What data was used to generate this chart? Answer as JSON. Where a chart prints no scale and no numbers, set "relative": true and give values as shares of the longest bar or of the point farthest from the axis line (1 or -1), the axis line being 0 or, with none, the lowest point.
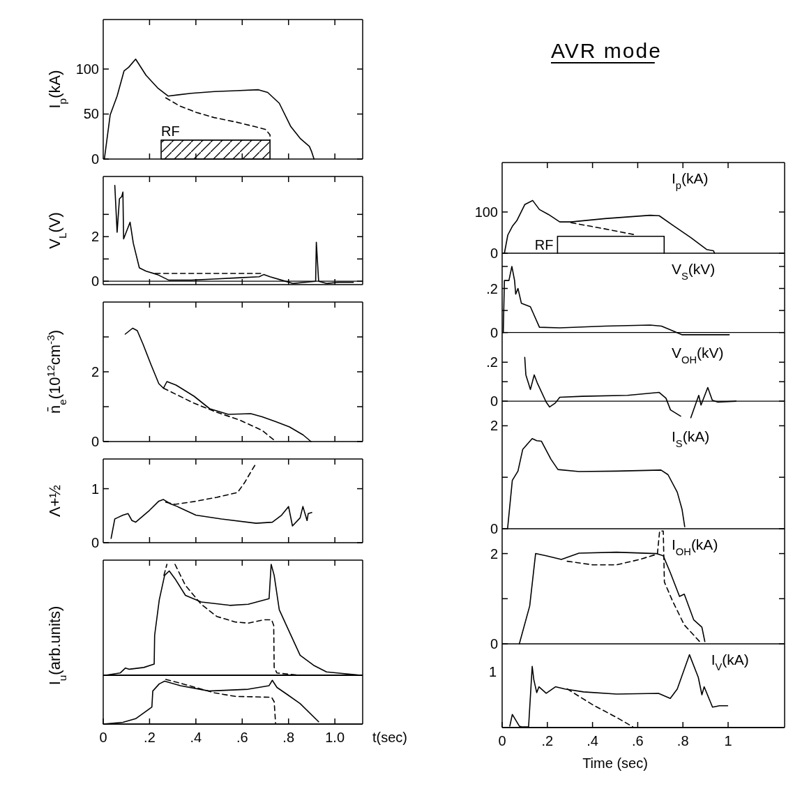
{
  "chart_data": [
    {
      "type": "line",
      "ylabel": "I$_{p}$(kA)",
      "xlim": [
        0,
        1.12
      ],
      "xticks": [
        {
          "value": 0.2,
          "label": null
        },
        {
          "value": 0.4,
          "label": null
        },
        {
          "value": 0.6,
          "label": null
        },
        {
          "value": 0.8,
          "label": null
        },
        {
          "value": 1.0,
          "label": null
        }
      ],
      "ylim": [
        0,
        155
      ],
      "yticks": [
        0,
        50,
        100
      ],
      "tick_labels": "y",
      "series": [
        {
          "color": "#000000",
          "line_style": "solid",
          "x": [
            0.005,
            0.03,
            0.06,
            0.09,
            0.11,
            0.14,
            0.185,
            0.235,
            0.28,
            0.38,
            0.48,
            0.575,
            0.67,
            0.71,
            0.76,
            0.81,
            0.85,
            0.89,
            0.9,
            0.91
          ],
          "values": [
            0,
            49,
            70,
            98,
            102,
            111,
            93,
            79,
            70,
            73,
            75,
            76,
            77,
            74,
            62,
            36,
            23,
            14,
            8,
            0
          ]
        },
        {
          "color": "#000000",
          "line_style": "dashed",
          "x": [
            0.27,
            0.33,
            0.4,
            0.48,
            0.575,
            0.655,
            0.7,
            0.72,
            0.72
          ],
          "values": [
            68,
            59,
            52,
            46,
            41,
            36,
            33,
            27,
            21
          ]
        },
        {
          "type": "area",
          "name": "RF",
          "color": "#000000",
          "x": [
            0.25,
            0.72
          ],
          "values": [
            21,
            21
          ]
        }
      ]
    },
    {
      "type": "line",
      "ylabel": "V$_{L}$(V)",
      "xlim": [
        0,
        1.12
      ],
      "xticks": [
        {
          "value": 0.2,
          "label": null
        },
        {
          "value": 0.4,
          "label": null
        },
        {
          "value": 0.6,
          "label": null
        },
        {
          "value": 0.8,
          "label": null
        },
        {
          "value": 1.0,
          "label": null
        }
      ],
      "ylim": [
        -0.15,
        4.7
      ],
      "yticks": [
        0,
        {
          "value": 1,
          "label": null
        },
        2,
        {
          "value": 3,
          "label": null
        }
      ],
      "tick_labels": "y",
      "ref_lines": [
        {
          "axis": "y",
          "value": 0
        }
      ],
      "series": [
        {
          "color": "#000000",
          "line_style": "solid",
          "x": [
            0.05,
            0.06,
            0.07,
            0.08,
            0.085,
            0.088,
            0.116,
            0.13,
            0.156,
            0.185,
            0.234,
            0.283,
            0.38,
            0.478,
            0.575,
            0.673,
            0.693,
            0.72,
            0.77,
            0.82,
            0.87,
            0.917,
            0.92,
            0.93,
            0.966,
            1.015,
            1.08
          ],
          "values": [
            4.3,
            2.2,
            3.7,
            3.8,
            4.0,
            1.9,
            2.65,
            1.7,
            0.6,
            0.45,
            0.3,
            0.05,
            0.05,
            0.1,
            0.15,
            0.2,
            0.3,
            0.2,
            0.05,
            -0.1,
            -0.05,
            0,
            1.75,
            0,
            -0.1,
            -0.05,
            -0.05
          ]
        },
        {
          "color": "#000000",
          "line_style": "dashed",
          "x": [
            0.225,
            0.69
          ],
          "values": [
            0.35,
            0.35
          ]
        }
      ]
    },
    {
      "type": "line",
      "ylabel": "n̄$_{e}$(10$^{12}$cm$^{-3}$)",
      "xlim": [
        0,
        1.12
      ],
      "xticks": [
        {
          "value": 0.2,
          "label": null
        },
        {
          "value": 0.4,
          "label": null
        },
        {
          "value": 0.6,
          "label": null
        },
        {
          "value": 0.8,
          "label": null
        },
        {
          "value": 1.0,
          "label": null
        }
      ],
      "ylim": [
        0,
        4.0
      ],
      "yticks": [
        0,
        {
          "value": 1,
          "label": null
        },
        2,
        {
          "value": 3,
          "label": null
        }
      ],
      "tick_labels": "y",
      "series": [
        {
          "color": "#000000",
          "line_style": "solid",
          "x": [
            0.095,
            0.127,
            0.147,
            0.172,
            0.206,
            0.24,
            0.26,
            0.275,
            0.314,
            0.392,
            0.46,
            0.54,
            0.637,
            0.686,
            0.745,
            0.804,
            0.863,
            0.897
          ],
          "values": [
            3.08,
            3.25,
            3.18,
            2.79,
            2.21,
            1.66,
            1.53,
            1.72,
            1.62,
            1.3,
            0.94,
            0.78,
            0.8,
            0.71,
            0.57,
            0.42,
            0.19,
            0
          ]
        },
        {
          "color": "#000000",
          "line_style": "dashed",
          "x": [
            0.26,
            0.392,
            0.49,
            0.588,
            0.686,
            0.745
          ],
          "values": [
            1.53,
            1.1,
            0.84,
            0.62,
            0.32,
            0
          ]
        }
      ]
    },
    {
      "type": "line",
      "ylabel": "Λ+½",
      "xlim": [
        0,
        1.12
      ],
      "xticks": [
        {
          "value": 0.2,
          "label": null
        },
        {
          "value": 0.4,
          "label": null
        },
        {
          "value": 0.6,
          "label": null
        },
        {
          "value": 0.8,
          "label": null
        },
        {
          "value": 1.0,
          "label": null
        }
      ],
      "ylim": [
        0,
        1.55
      ],
      "yticks": [
        0,
        1
      ],
      "tick_labels": "y",
      "series": [
        {
          "color": "#000000",
          "line_style": "solid",
          "x": [
            0.034,
            0.05,
            0.06,
            0.085,
            0.107,
            0.124,
            0.14,
            0.2,
            0.24,
            0.26,
            0.29,
            0.32,
            0.4,
            0.51,
            0.66,
            0.73,
            0.77,
            0.8,
            0.817,
            0.85,
            0.862,
            0.88,
            0.885,
            0.9
          ],
          "values": [
            0.08,
            0.44,
            0.46,
            0.51,
            0.54,
            0.41,
            0.38,
            0.6,
            0.77,
            0.8,
            0.72,
            0.67,
            0.51,
            0.44,
            0.36,
            0.38,
            0.51,
            0.67,
            0.31,
            0.46,
            0.67,
            0.41,
            0.54,
            0.56
          ]
        },
        {
          "color": "#000000",
          "line_style": "dashed",
          "x": [
            0.27,
            0.31,
            0.39,
            0.49,
            0.58,
            0.61,
            0.64,
            0.66
          ],
          "values": [
            0.75,
            0.71,
            0.76,
            0.84,
            0.93,
            1.11,
            1.33,
            1.47
          ]
        }
      ]
    },
    {
      "type": "line",
      "relative": true,
      "ylabel": "I$_{u}$(arb.units)",
      "xlim": [
        0,
        1.12
      ],
      "xticks": [
        {
          "value": 0.2,
          "label": null
        },
        {
          "value": 0.4,
          "label": null
        },
        {
          "value": 0.6,
          "label": null
        },
        {
          "value": 0.8,
          "label": null
        },
        {
          "value": 1.0,
          "label": null
        }
      ],
      "tick_labels": false,
      "series": [
        {
          "color": "#000000",
          "line_style": "solid",
          "x": [
            0.01,
            0.073,
            0.096,
            0.113,
            0.175,
            0.22,
            0.222,
            0.242,
            0.265,
            0.285,
            0.31,
            0.355,
            0.423,
            0.547,
            0.626,
            0.716,
            0.725,
            0.738,
            0.76,
            0.795,
            0.85,
            0.908,
            0.964,
            1.01,
            1.11
          ],
          "values": [
            0,
            0.02,
            0.065,
            0.054,
            0.07,
            0.1,
            0.36,
            0.68,
            0.9,
            0.94,
            0.87,
            0.72,
            0.66,
            0.63,
            0.64,
            0.69,
            1.0,
            0.9,
            0.59,
            0.43,
            0.18,
            0.09,
            0.03,
            0.02,
            0
          ]
        },
        {
          "color": "#000000",
          "line_style": "dashed",
          "x": [
            0.262,
            0.275,
            0.29,
            0.31,
            0.355,
            0.423,
            0.49,
            0.57,
            0.626,
            0.693,
            0.727,
            0.736,
            0.738,
            0.75,
            0.85
          ],
          "values": [
            0.9,
            1.0,
            null,
            1.0,
            0.81,
            0.64,
            0.53,
            0.48,
            0.47,
            0.5,
            0.5,
            0.45,
            0.07,
            0.02,
            0
          ]
        }
      ]
    },
    {
      "type": "line",
      "relative": true,
      "xlabel": "t(sec)",
      "xlim": [
        0,
        1.12
      ],
      "xticks": [
        {
          "value": 0,
          "label": "0"
        },
        {
          "value": 0.2,
          "label": ".2"
        },
        {
          "value": 0.4,
          "label": ".4"
        },
        {
          "value": 0.6,
          "label": ".6"
        },
        {
          "value": 0.8,
          "label": ".8"
        },
        {
          "value": 1.0,
          "label": "1.0"
        }
      ],
      "tick_labels": "x",
      "series": [
        {
          "color": "#000000",
          "line_style": "solid",
          "x": [
            0,
            0.085,
            0.14,
            0.21,
            0.214,
            0.242,
            0.265,
            0.333,
            0.457,
            0.626,
            0.716,
            0.73,
            0.75,
            0.795,
            0.85,
            0.93
          ],
          "values": [
            0,
            0.04,
            0.12,
            0.38,
            0.74,
            0.9,
            0.96,
            0.86,
            0.74,
            0.78,
            0.86,
            0.98,
            0.82,
            0.66,
            0.46,
            0.05
          ]
        },
        {
          "color": "#000000",
          "line_style": "dashed",
          "x": [
            0.27,
            0.344,
            0.48,
            0.57,
            0.727,
            0.738,
            0.744
          ],
          "values": [
            1.0,
            0.9,
            0.7,
            0.62,
            0.6,
            0.5,
            0.02
          ]
        }
      ]
    },
    {
      "type": "line",
      "title": "AVR mode",
      "ylabel": "I$_{p}$(kA)",
      "xlim": [
        0,
        1.25
      ],
      "xticks": [
        {
          "value": 0.2,
          "label": null
        },
        {
          "value": 0.4,
          "label": null
        },
        {
          "value": 0.6,
          "label": null
        },
        {
          "value": 0.8,
          "label": null
        },
        {
          "value": 1,
          "label": null
        }
      ],
      "ylim": [
        0,
        220
      ],
      "yticks": [
        0,
        100
      ],
      "tick_labels": "y",
      "series": [
        {
          "color": "#000000",
          "line_style": "solid",
          "x": [
            0.01,
            0.025,
            0.045,
            0.065,
            0.1,
            0.135,
            0.165,
            0.205,
            0.255,
            0.305,
            0.455,
            0.655,
            0.695,
            0.755,
            0.835,
            0.905,
            0.935,
            0.94
          ],
          "values": [
            0,
            44,
            65,
            79,
            118,
            128,
            106,
            94,
            76,
            76,
            84,
            92,
            91,
            68,
            38,
            9,
            6,
            0
          ]
        },
        {
          "color": "#000000",
          "line_style": "dashed",
          "x": [
            0.305,
            0.455,
            0.585
          ],
          "values": [
            74,
            59,
            45
          ]
        },
        {
          "type": "line",
          "name": "RF",
          "color": "#000000",
          "line_style": "solid",
          "x": [
            0.245,
            0.245,
            0.717,
            0.717
          ],
          "values": [
            0,
            41,
            41,
            0
          ]
        }
      ]
    },
    {
      "type": "line",
      "ylabel": "V$_{S}$(kV)",
      "xlim": [
        0,
        1.25
      ],
      "ylim": [
        -0.02,
        0.36
      ],
      "yticks": [
        0,
        {
          "value": 0.1,
          "label": null
        },
        {
          "value": 0.2,
          "label": ".2"
        },
        {
          "value": 0.3,
          "label": null
        }
      ],
      "tick_labels": "y",
      "ref_lines": [
        {
          "axis": "y",
          "value": 0
        }
      ],
      "series": [
        {
          "color": "#000000",
          "line_style": "solid",
          "x": [
            0.005,
            0.01,
            0.03,
            0.043,
            0.055,
            0.06,
            0.07,
            0.085,
            0.125,
            0.165,
            0.255,
            0.455,
            0.655,
            0.705,
            0.755,
            0.795,
            1.005
          ],
          "values": [
            0,
            0.236,
            0.236,
            0.3,
            0.236,
            0.174,
            0.2,
            0.133,
            0.117,
            0.024,
            0.021,
            0.029,
            0.034,
            0.029,
            0.008,
            -0.01,
            -0.01
          ]
        }
      ]
    },
    {
      "type": "line",
      "ylabel": "V$_{OH}$(kV)",
      "xlim": [
        0,
        1.25
      ],
      "ylim": [
        -0.1,
        0.33
      ],
      "yticks": [
        0,
        {
          "value": 0.1,
          "label": null
        },
        {
          "value": 0.2,
          "label": ".2"
        }
      ],
      "tick_labels": "y",
      "ref_lines": [
        {
          "axis": "y",
          "value": 0
        }
      ],
      "series": [
        {
          "color": "#000000",
          "line_style": "solid",
          "x": [
            0.1,
            0.105,
            0.125,
            0.142,
            0.155,
            0.195,
            0.21,
            0.235,
            0.255,
            0.355,
            0.555,
            0.695,
            0.725,
            0.745,
            0.79,
            0.8,
            0.835,
            0.87,
            0.88,
            0.91,
            0.93,
            0.955,
            1.035
          ],
          "values": [
            0.225,
            0.135,
            0.06,
            0.135,
            0.095,
            -0.005,
            -0.03,
            -0.01,
            0.02,
            0.025,
            0.03,
            0.045,
            0.015,
            -0.045,
            -0.077,
            null,
            -0.085,
            0.03,
            -0.02,
            0.07,
            0.005,
            -0.005,
            0
          ]
        }
      ]
    },
    {
      "type": "line",
      "ylabel": "I$_{S}$(kA)",
      "xlim": [
        0,
        1.25
      ],
      "ylim": [
        0,
        2.1
      ],
      "yticks": [
        0,
        {
          "value": 1,
          "label": null
        },
        2
      ],
      "tick_labels": "y",
      "series": [
        {
          "color": "#000000",
          "line_style": "solid",
          "x": [
            0.024,
            0.045,
            0.07,
            0.091,
            0.133,
            0.153,
            0.174,
            0.216,
            0.247,
            0.34,
            0.506,
            0.703,
            0.734,
            0.775,
            0.796,
            0.808
          ],
          "values": [
            0,
            0.94,
            1.12,
            1.54,
            1.75,
            1.71,
            1.7,
            1.35,
            1.15,
            1.11,
            1.12,
            1.14,
            1.05,
            0.71,
            0.38,
            0.04
          ]
        }
      ]
    },
    {
      "type": "line",
      "ylabel": "I$_{OH}$(kA)",
      "xlim": [
        0,
        1.25
      ],
      "ylim": [
        0,
        2.55
      ],
      "yticks": [
        0,
        {
          "value": 1,
          "label": null
        },
        2
      ],
      "tick_labels": "y",
      "series": [
        {
          "color": "#000000",
          "line_style": "solid",
          "x": [
            0.076,
            0.122,
            0.148,
            0.195,
            0.262,
            0.34,
            0.506,
            0.682,
            0.713,
            0.744,
            0.785,
            0.806,
            0.848,
            0.884,
            0.897
          ],
          "values": [
            0,
            0.84,
            2.0,
            1.95,
            1.87,
            2.01,
            2.03,
            2.0,
            1.95,
            1.58,
            1.05,
            1.1,
            0.53,
            0.37,
            0.05
          ]
        },
        {
          "color": "#000000",
          "line_style": "dashed",
          "x": [
            0.288,
            0.402,
            0.506,
            0.609,
            0.687,
            0.697,
            0.713,
            0.718,
            0.754,
            0.806,
            0.874
          ],
          "values": [
            1.83,
            1.75,
            1.75,
            1.87,
            1.99,
            2.5,
            2.5,
            1.37,
            0.95,
            0.42,
            0.05
          ]
        }
      ]
    },
    {
      "type": "line",
      "relative": true,
      "ylabel": "I$_{V}$(kA)",
      "xlabel": "Time (sec)",
      "annotations": [
        "1"
      ],
      "xlim": [
        0,
        1.25
      ],
      "xticks": [
        {
          "value": 0,
          "label": "0"
        },
        {
          "value": 0.2,
          "label": ".2"
        },
        {
          "value": 0.4,
          "label": ".4"
        },
        {
          "value": 0.6,
          "label": ".6"
        },
        {
          "value": 0.8,
          "label": ".8"
        },
        {
          "value": 1,
          "label": "1"
        }
      ],
      "tick_labels": "x",
      "series": [
        {
          "color": "#000000",
          "line_style": "solid",
          "x": [
            0.034,
            0.045,
            0.076,
            0.086,
            0.117,
            0.133,
            0.14,
            0.153,
            0.163,
            0.195,
            0.236,
            0.278,
            0.36,
            0.506,
            0.692,
            0.744,
            0.775,
            0.829,
            0.868,
            0.884,
            0.894,
            0.931,
            0.962,
            0.998
          ],
          "values": [
            0.02,
            0.18,
            0.02,
            0.01,
            0.01,
            0.84,
            0.66,
            0.48,
            0.56,
            0.47,
            0.56,
            0.53,
            0.49,
            0.46,
            0.47,
            0.4,
            0.53,
            1,
            0.69,
            0.45,
            0.56,
            0.28,
            0.3,
            0.3
          ]
        },
        {
          "color": "#000000",
          "line_style": "dashed",
          "x": [
            0.288,
            0.402,
            0.506,
            0.578
          ],
          "values": [
            0.53,
            0.31,
            0.14,
            0.01
          ]
        }
      ]
    }
  ]
}
